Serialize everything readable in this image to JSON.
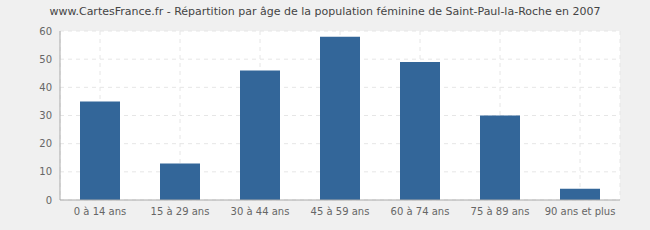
{
  "chart_data": {
    "type": "bar",
    "title": "www.CartesFrance.fr - Répartition par âge de la population féminine de Saint-Paul-la-Roche en 2007",
    "categories": [
      "0 à 14 ans",
      "15 à 29 ans",
      "30 à 44 ans",
      "45 à 59 ans",
      "60 à 74 ans",
      "75 à 89 ans",
      "90 ans et plus"
    ],
    "values": [
      35,
      13,
      46,
      58,
      49,
      30,
      4
    ],
    "color": "#336699",
    "ylim": [
      0,
      60
    ],
    "yticks": [
      0,
      10,
      20,
      30,
      40,
      50,
      60
    ],
    "grid": true
  }
}
